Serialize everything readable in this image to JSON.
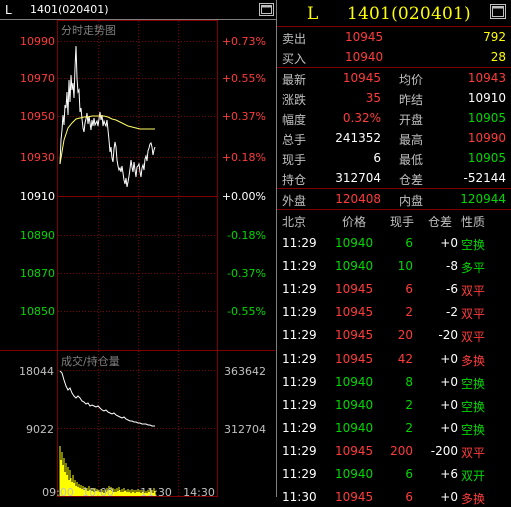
{
  "titlebar": {
    "letter": "L",
    "symbol": "1401(020401)"
  },
  "chart": {
    "title": "分时走势图",
    "price_ticks": [
      "10990",
      "10970",
      "10950",
      "10930",
      "10910",
      "10890",
      "10870",
      "10850"
    ],
    "pct_ticks": [
      "+0.73%",
      "+0.55%",
      "+0.37%",
      "+0.18%",
      "+0.00%",
      "-0.18%",
      "-0.37%",
      "-0.55%"
    ],
    "vol_title": "成交/持仓量",
    "vol_left": [
      "18044",
      "9022"
    ],
    "vol_right": [
      "363642",
      "312704"
    ],
    "time_labels": [
      "09:00",
      "10:00",
      "11:30",
      "14:30"
    ]
  },
  "panel": {
    "header": {
      "letter": "L",
      "code": "1401(020401)"
    },
    "sell": {
      "label": "卖出",
      "price": "10945",
      "vol": "792"
    },
    "buy": {
      "label": "买入",
      "price": "10940",
      "vol": "28"
    },
    "stats": [
      {
        "l1": "最新",
        "v1": "10945",
        "l2": "均价",
        "v2": "10943"
      },
      {
        "l1": "涨跌",
        "v1": "35",
        "l2": "昨结",
        "v2": "10910"
      },
      {
        "l1": "幅度",
        "v1": "0.32%",
        "l2": "开盘",
        "v2": "10905"
      },
      {
        "l1": "总手",
        "v1": "241352",
        "l2": "最高",
        "v2": "10990"
      },
      {
        "l1": "现手",
        "v1": "6",
        "l2": "最低",
        "v2": "10905"
      },
      {
        "l1": "持仓",
        "v1": "312704",
        "l2": "仓差",
        "v2": "-52144"
      }
    ],
    "outer": {
      "label": "外盘",
      "value": "120408",
      "label2": "内盘",
      "value2": "120944"
    },
    "tick_header": {
      "c1": "北京",
      "c2": "价格",
      "c3": "现手",
      "c4": "仓差",
      "c5": "性质"
    },
    "ticks": [
      {
        "time": "11:29",
        "price": "10940",
        "vol": "6",
        "diff": "+0",
        "type": "空换",
        "tc": "cg",
        "vc": "cg"
      },
      {
        "time": "11:29",
        "price": "10940",
        "vol": "10",
        "diff": "-8",
        "type": "多平",
        "tc": "cg",
        "vc": "cg"
      },
      {
        "time": "11:29",
        "price": "10945",
        "vol": "6",
        "diff": "-6",
        "type": "双平",
        "tc": "cr",
        "vc": "cr"
      },
      {
        "time": "11:29",
        "price": "10945",
        "vol": "2",
        "diff": "-2",
        "type": "双平",
        "tc": "cr",
        "vc": "cr"
      },
      {
        "time": "11:29",
        "price": "10945",
        "vol": "20",
        "diff": "-20",
        "type": "双平",
        "tc": "cr",
        "vc": "cr"
      },
      {
        "time": "11:29",
        "price": "10945",
        "vol": "42",
        "diff": "+0",
        "type": "多换",
        "tc": "cr",
        "vc": "cr"
      },
      {
        "time": "11:29",
        "price": "10940",
        "vol": "8",
        "diff": "+0",
        "type": "空换",
        "tc": "cg",
        "vc": "cg"
      },
      {
        "time": "11:29",
        "price": "10940",
        "vol": "2",
        "diff": "+0",
        "type": "空换",
        "tc": "cg",
        "vc": "cg"
      },
      {
        "time": "11:29",
        "price": "10940",
        "vol": "2",
        "diff": "+0",
        "type": "空换",
        "tc": "cg",
        "vc": "cg"
      },
      {
        "time": "11:29",
        "price": "10945",
        "vol": "200",
        "diff": "-200",
        "type": "双平",
        "tc": "cr",
        "vc": "cr"
      },
      {
        "time": "11:29",
        "price": "10940",
        "vol": "6",
        "diff": "+6",
        "type": "双开",
        "tc": "cg",
        "vc": "cg"
      },
      {
        "time": "11:30",
        "price": "10945",
        "vol": "6",
        "diff": "+0",
        "type": "多换",
        "tc": "cr",
        "vc": "cr"
      }
    ]
  },
  "colors": {
    "up": "#ff3b3b",
    "down": "#00d800",
    "grid": "#800000",
    "label": "#c0c0c0",
    "highlight": "#ffff00"
  }
}
